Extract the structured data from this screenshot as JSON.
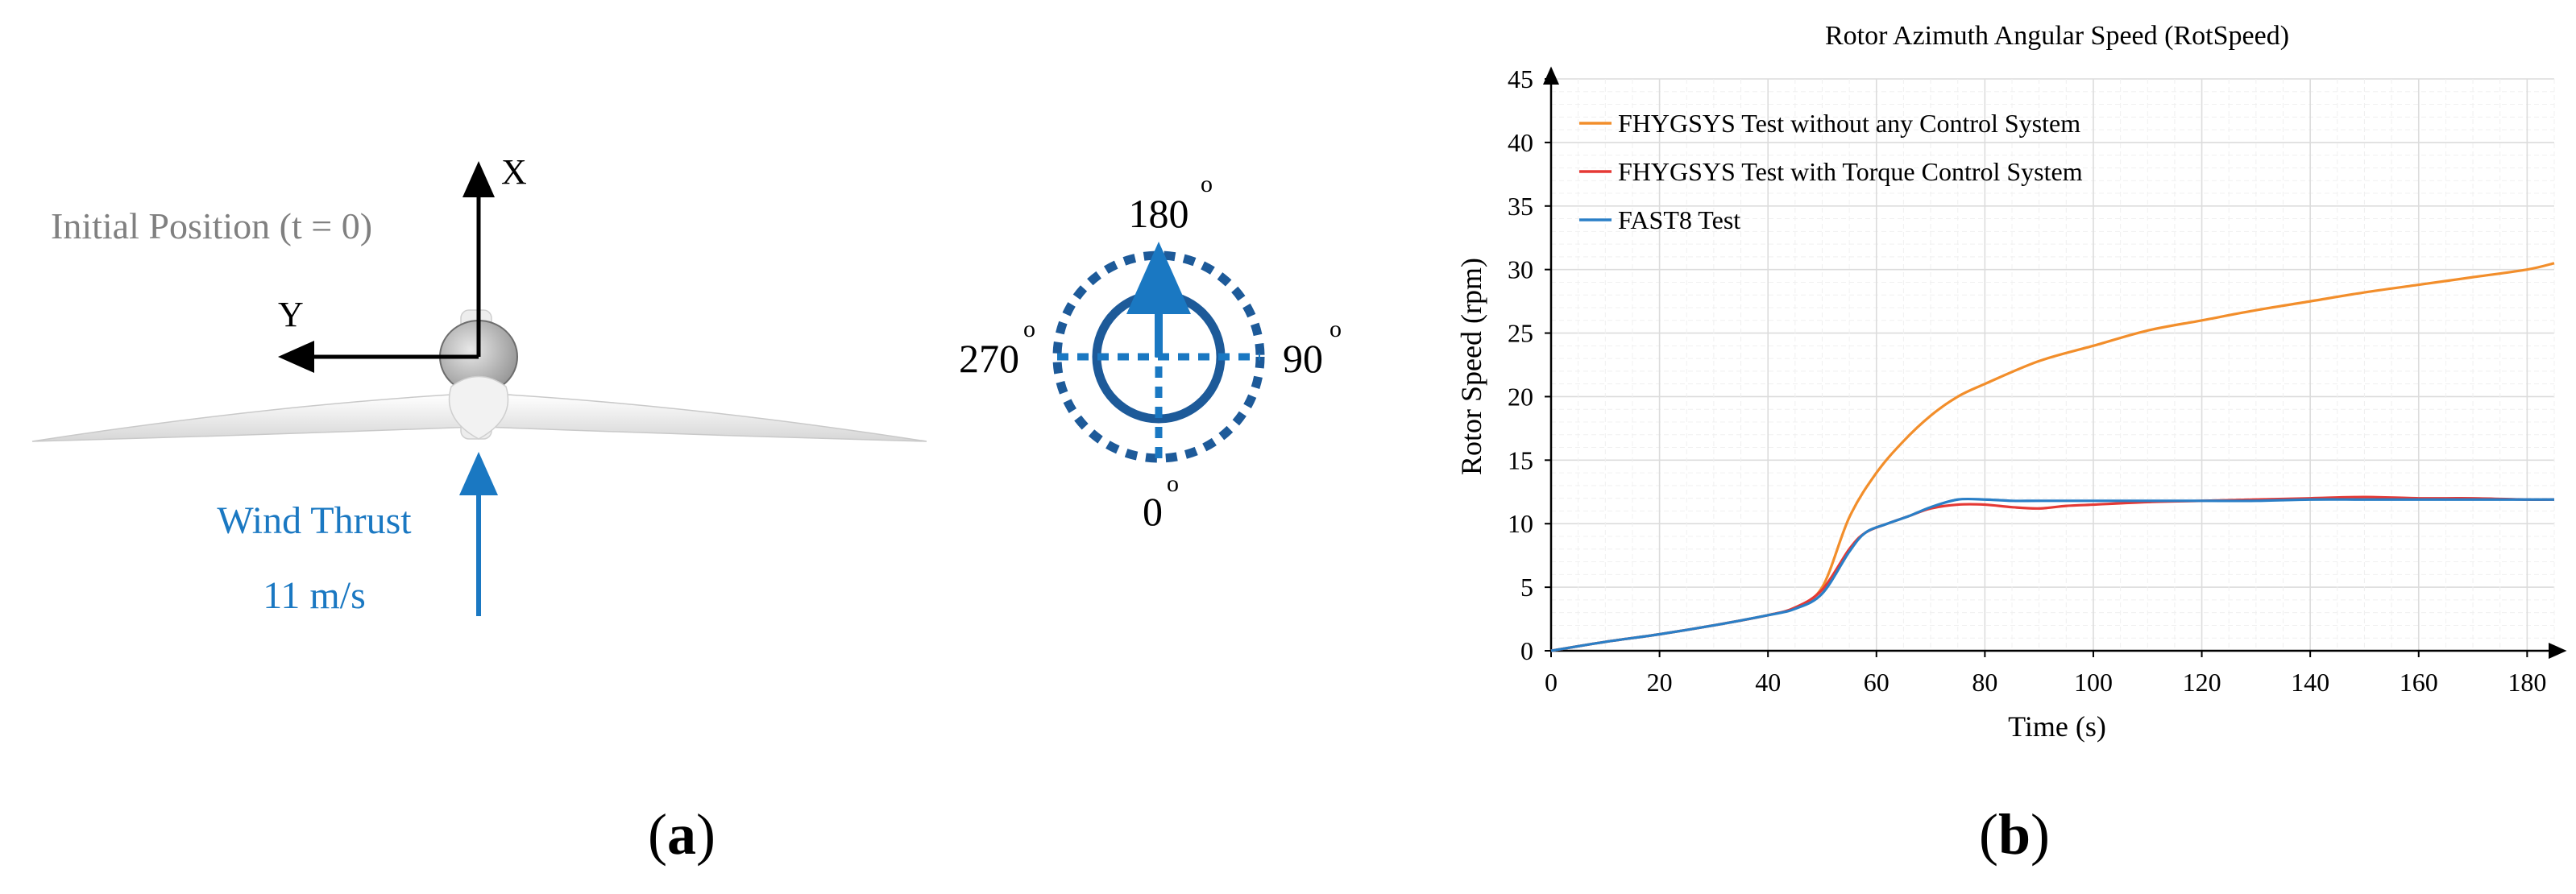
{
  "colors": {
    "blue": "#1a78c2",
    "navy": "#1d5a99",
    "gray_text": "#808080",
    "orange": "#f28e2b",
    "red": "#e53935",
    "fast8_blue": "#2a7fc7"
  },
  "panel_a": {
    "caption_prefix": "(",
    "caption_letter": "a",
    "caption_suffix": ")",
    "initial_position": "Initial Position (t = 0)",
    "axis_x_label": "X",
    "axis_y_label": "Y",
    "wind_label": "Wind Thrust",
    "wind_speed": "11 m/s",
    "compass": {
      "top": "180",
      "right": "90",
      "bottom": "0",
      "left": "270",
      "degree_mark": "o"
    }
  },
  "panel_b": {
    "caption_prefix": "(",
    "caption_letter": "b",
    "caption_suffix": ")"
  },
  "chart_data": {
    "type": "line",
    "title": "Rotor Azimuth Angular Speed (RotSpeed)",
    "xlabel": "Time (s)",
    "ylabel": "Rotor Speed (rpm)",
    "xlim": [
      0,
      185
    ],
    "ylim": [
      0,
      45
    ],
    "xticks": [
      0,
      20,
      40,
      60,
      80,
      100,
      120,
      140,
      160,
      180
    ],
    "yticks": [
      0,
      5,
      10,
      15,
      20,
      25,
      30,
      35,
      40,
      45
    ],
    "grid": true,
    "legend_position": "top-left",
    "series": [
      {
        "name": "FHYGSYS Test without any Control System",
        "color": "#f28e2b",
        "x": [
          0,
          10,
          20,
          30,
          40,
          45,
          50,
          55,
          60,
          65,
          70,
          75,
          80,
          90,
          100,
          110,
          120,
          130,
          140,
          150,
          160,
          170,
          180,
          185
        ],
        "y": [
          0,
          0.7,
          1.3,
          2.0,
          2.8,
          3.4,
          5.0,
          10.5,
          14.0,
          16.5,
          18.5,
          20.0,
          21.0,
          22.8,
          24.0,
          25.2,
          26.0,
          26.8,
          27.5,
          28.2,
          28.8,
          29.4,
          30.0,
          30.5
        ]
      },
      {
        "name": "FHYGSYS Test with Torque Control System",
        "color": "#e53935",
        "x": [
          0,
          10,
          20,
          30,
          40,
          45,
          50,
          55,
          58,
          62,
          66,
          70,
          75,
          80,
          85,
          90,
          95,
          100,
          110,
          120,
          130,
          140,
          150,
          160,
          170,
          180,
          185
        ],
        "y": [
          0,
          0.7,
          1.3,
          2.0,
          2.8,
          3.4,
          4.8,
          8.0,
          9.3,
          10.0,
          10.6,
          11.2,
          11.5,
          11.5,
          11.3,
          11.2,
          11.4,
          11.5,
          11.7,
          11.8,
          11.9,
          12.0,
          12.1,
          12.0,
          12.0,
          11.9,
          11.9
        ]
      },
      {
        "name": "FAST8 Test",
        "color": "#2a7fc7",
        "x": [
          0,
          10,
          20,
          30,
          40,
          45,
          50,
          55,
          58,
          62,
          66,
          70,
          75,
          80,
          85,
          90,
          100,
          110,
          120,
          130,
          140,
          150,
          160,
          170,
          180,
          185
        ],
        "y": [
          0,
          0.7,
          1.3,
          2.0,
          2.8,
          3.3,
          4.5,
          7.8,
          9.3,
          10.0,
          10.6,
          11.3,
          11.9,
          11.9,
          11.8,
          11.8,
          11.8,
          11.8,
          11.8,
          11.8,
          11.9,
          11.9,
          11.9,
          11.9,
          11.9,
          11.9
        ]
      }
    ]
  }
}
